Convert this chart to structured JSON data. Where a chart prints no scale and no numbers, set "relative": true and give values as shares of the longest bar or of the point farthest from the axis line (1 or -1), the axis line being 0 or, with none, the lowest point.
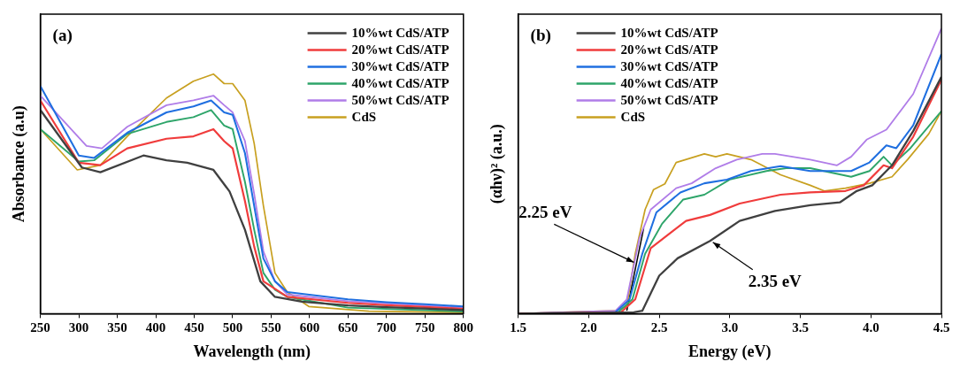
{
  "chart_data": [
    {
      "type": "line",
      "title": "(a)",
      "xlabel": "Wavelength (nm)",
      "ylabel": "Absorbance (a.u)",
      "relative": true,
      "xlim": [
        250,
        800
      ],
      "xticks": [
        250,
        300,
        350,
        400,
        450,
        500,
        550,
        600,
        650,
        700,
        750,
        800
      ],
      "legend": "top right",
      "series": [
        {
          "name": "10%wt CdS/ATP",
          "color": "#404040",
          "x": [
            250,
            304,
            328,
            384,
            414,
            441,
            475,
            496,
            516,
            536,
            555,
            590,
            650,
            700,
            750,
            800
          ],
          "values": [
            0.85,
            0.61,
            0.59,
            0.66,
            0.64,
            0.63,
            0.6,
            0.51,
            0.35,
            0.135,
            0.07,
            0.05,
            0.034,
            0.027,
            0.021,
            0.015
          ]
        },
        {
          "name": "20%wt CdS/ATP",
          "color": "#f03c3c",
          "x": [
            250,
            300,
            328,
            363,
            414,
            449,
            475,
            489,
            500,
            516,
            528,
            540,
            571,
            650,
            700,
            750,
            800
          ],
          "values": [
            0.89,
            0.63,
            0.62,
            0.69,
            0.73,
            0.74,
            0.77,
            0.72,
            0.69,
            0.47,
            0.28,
            0.135,
            0.07,
            0.045,
            0.035,
            0.028,
            0.02
          ]
        },
        {
          "name": "30%wt CdS/ATP",
          "color": "#1f6fe0",
          "x": [
            250,
            300,
            320,
            363,
            414,
            449,
            472,
            489,
            500,
            516,
            528,
            540,
            555,
            571,
            650,
            700,
            750,
            800
          ],
          "values": [
            0.95,
            0.66,
            0.65,
            0.755,
            0.84,
            0.865,
            0.89,
            0.84,
            0.83,
            0.67,
            0.45,
            0.23,
            0.135,
            0.09,
            0.06,
            0.048,
            0.039,
            0.03
          ]
        },
        {
          "name": "40%wt CdS/ATP",
          "color": "#2ea56a",
          "x": [
            250,
            300,
            320,
            363,
            414,
            449,
            472,
            489,
            500,
            516,
            528,
            540,
            555,
            571,
            650,
            800
          ],
          "values": [
            0.77,
            0.635,
            0.64,
            0.75,
            0.8,
            0.82,
            0.85,
            0.785,
            0.77,
            0.55,
            0.35,
            0.17,
            0.1,
            0.07,
            0.025,
            0.009
          ]
        },
        {
          "name": "50%wt CdS/ATP",
          "color": "#b07de8",
          "x": [
            250,
            310,
            330,
            363,
            414,
            449,
            475,
            489,
            500,
            516,
            528,
            540,
            555,
            571,
            650,
            800
          ],
          "values": [
            0.91,
            0.7,
            0.69,
            0.78,
            0.87,
            0.89,
            0.91,
            0.87,
            0.84,
            0.72,
            0.5,
            0.26,
            0.135,
            0.08,
            0.052,
            0.025
          ]
        },
        {
          "name": "CdS",
          "color": "#c8a020",
          "x": [
            250,
            298,
            328,
            363,
            414,
            449,
            475,
            489,
            500,
            516,
            528,
            540,
            555,
            571,
            599,
            677,
            800
          ],
          "values": [
            0.77,
            0.6,
            0.62,
            0.74,
            0.9,
            0.97,
            1,
            0.96,
            0.96,
            0.89,
            0.71,
            0.45,
            0.17,
            0.09,
            0.03,
            0.01,
            0.005
          ]
        }
      ]
    },
    {
      "type": "line",
      "title": "(b)",
      "xlabel": "Energy (eV)",
      "ylabel": "(αhν)² (a.u.)",
      "relative": true,
      "xlim": [
        1.5,
        4.5
      ],
      "xticks": [
        1.5,
        {
          "value": 2,
          "label": "2.0"
        },
        2.5,
        {
          "value": 3,
          "label": "3.0"
        },
        3.5,
        {
          "value": 4,
          "label": "4.0"
        },
        4.5
      ],
      "legend": "top left",
      "annotations": [
        {
          "text": "2.25 eV",
          "x": 2.32,
          "y": 0.18
        },
        {
          "text": "2.35 eV",
          "x": 2.88,
          "y": 0.25
        }
      ],
      "series": [
        {
          "name": "10%wt CdS/ATP",
          "color": "#404040",
          "x": [
            1.5,
            2.32,
            2.38,
            2.5,
            2.63,
            2.86,
            3.07,
            3.32,
            3.57,
            3.78,
            3.9,
            4.01,
            4.15,
            4.3,
            4.5
          ],
          "values": [
            0,
            0.005,
            0.01,
            0.133,
            0.194,
            0.255,
            0.325,
            0.36,
            0.38,
            0.39,
            0.43,
            0.45,
            0.52,
            0.64,
            0.83
          ]
        },
        {
          "name": "20%wt CdS/ATP",
          "color": "#f03c3c",
          "x": [
            1.5,
            2.23,
            2.33,
            2.44,
            2.61,
            2.69,
            2.86,
            3.07,
            3.36,
            3.57,
            3.82,
            3.95,
            4.09,
            4.15,
            4.3,
            4.5
          ],
          "values": [
            0,
            0.005,
            0.05,
            0.23,
            0.295,
            0.325,
            0.346,
            0.386,
            0.417,
            0.425,
            0.43,
            0.45,
            0.52,
            0.51,
            0.62,
            0.82
          ]
        },
        {
          "name": "30%wt CdS/ATP",
          "color": "#1f6fe0",
          "x": [
            1.5,
            2.19,
            2.29,
            2.38,
            2.48,
            2.65,
            2.82,
            2.98,
            3.15,
            3.36,
            3.57,
            3.86,
            3.99,
            4.11,
            4.18,
            4.3,
            4.5
          ],
          "values": [
            0,
            0.005,
            0.05,
            0.21,
            0.355,
            0.425,
            0.457,
            0.47,
            0.5,
            0.517,
            0.5,
            0.5,
            0.53,
            0.59,
            0.58,
            0.66,
            0.91
          ]
        },
        {
          "name": "40%wt CdS/ATP",
          "color": "#2ea56a",
          "x": [
            1.5,
            2.21,
            2.31,
            2.4,
            2.52,
            2.67,
            2.82,
            3,
            3.26,
            3.4,
            3.57,
            3.86,
            3.99,
            4.09,
            4.15,
            4.28,
            4.5
          ],
          "values": [
            0,
            0.005,
            0.05,
            0.21,
            0.315,
            0.4,
            0.417,
            0.47,
            0.5,
            0.51,
            0.51,
            0.48,
            0.5,
            0.55,
            0.52,
            0.58,
            0.71
          ]
        },
        {
          "name": "50%wt CdS/ATP",
          "color": "#b07de8",
          "x": [
            1.5,
            2.19,
            2.27,
            2.36,
            2.44,
            2.62,
            2.73,
            2.9,
            3.05,
            3.23,
            3.32,
            3.57,
            3.76,
            3.86,
            3.97,
            4.11,
            4.3,
            4.5
          ],
          "values": [
            0,
            0.01,
            0.05,
            0.265,
            0.365,
            0.44,
            0.457,
            0.51,
            0.54,
            0.56,
            0.56,
            0.54,
            0.52,
            0.55,
            0.61,
            0.645,
            0.77,
            1
          ]
        },
        {
          "name": "CdS",
          "color": "#c8a020",
          "x": [
            1.5,
            2.19,
            2.27,
            2.33,
            2.4,
            2.46,
            2.54,
            2.62,
            2.82,
            2.9,
            2.98,
            3.15,
            3.36,
            3.57,
            3.67,
            3.82,
            3.99,
            4.15,
            4.26,
            4.41,
            4.5
          ],
          "values": [
            0,
            0.01,
            0.026,
            0.21,
            0.365,
            0.435,
            0.455,
            0.53,
            0.56,
            0.55,
            0.56,
            0.54,
            0.487,
            0.45,
            0.43,
            0.44,
            0.457,
            0.48,
            0.54,
            0.63,
            0.71
          ]
        },
        {
          "type": "line",
          "color": "#000000",
          "x": [
            2.27,
            2.39
          ],
          "values": [
            0.01,
            0.3
          ]
        }
      ]
    }
  ]
}
